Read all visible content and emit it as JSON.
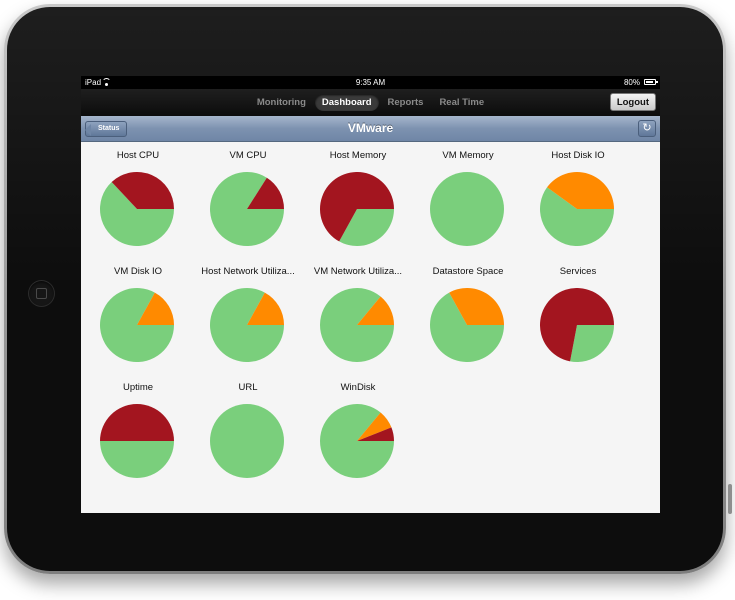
{
  "status_bar": {
    "carrier": "iPad",
    "time": "9:35 AM",
    "battery": "80%"
  },
  "nav": {
    "tabs": [
      {
        "label": "Monitoring",
        "active": false
      },
      {
        "label": "Dashboard",
        "active": true
      },
      {
        "label": "Reports",
        "active": false
      },
      {
        "label": "Real Time",
        "active": false
      }
    ],
    "logout_label": "Logout"
  },
  "title_bar": {
    "title": "VMware",
    "back_label": "Status",
    "refresh_icon": "refresh-icon"
  },
  "colors": {
    "ok": "#7acf7c",
    "critical": "#a3151f",
    "warning": "#ff8a00"
  },
  "charts": [
    {
      "label": "Host CPU",
      "slices": [
        {
          "status": "ok",
          "value": 0.63
        },
        {
          "status": "critical",
          "value": 0.37
        }
      ]
    },
    {
      "label": "VM CPU",
      "slices": [
        {
          "status": "ok",
          "value": 0.84
        },
        {
          "status": "critical",
          "value": 0.16
        }
      ]
    },
    {
      "label": "Host Memory",
      "slices": [
        {
          "status": "ok",
          "value": 0.33
        },
        {
          "status": "critical",
          "value": 0.67
        }
      ]
    },
    {
      "label": "VM Memory",
      "slices": [
        {
          "status": "ok",
          "value": 1.0
        }
      ]
    },
    {
      "label": "Host Disk IO",
      "slices": [
        {
          "status": "ok",
          "value": 0.6
        },
        {
          "status": "warning",
          "value": 0.4
        }
      ]
    },
    {
      "label": "VM Disk IO",
      "slices": [
        {
          "status": "ok",
          "value": 0.83
        },
        {
          "status": "warning",
          "value": 0.17
        }
      ]
    },
    {
      "label": "Host Network Utiliza...",
      "slices": [
        {
          "status": "ok",
          "value": 0.83
        },
        {
          "status": "warning",
          "value": 0.17
        }
      ]
    },
    {
      "label": "VM Network Utiliza...",
      "slices": [
        {
          "status": "ok",
          "value": 0.86
        },
        {
          "status": "warning",
          "value": 0.14
        }
      ]
    },
    {
      "label": "Datastore Space",
      "slices": [
        {
          "status": "ok",
          "value": 0.67
        },
        {
          "status": "warning",
          "value": 0.33
        }
      ]
    },
    {
      "label": "Services",
      "slices": [
        {
          "status": "ok",
          "value": 0.28
        },
        {
          "status": "critical",
          "value": 0.72
        }
      ]
    },
    {
      "label": "Uptime",
      "slices": [
        {
          "status": "ok",
          "value": 0.5
        },
        {
          "status": "critical",
          "value": 0.5
        }
      ]
    },
    {
      "label": "URL",
      "slices": [
        {
          "status": "ok",
          "value": 1.0
        }
      ]
    },
    {
      "label": "WinDisk",
      "slices": [
        {
          "status": "ok",
          "value": 0.86
        },
        {
          "status": "warning",
          "value": 0.08
        },
        {
          "status": "critical",
          "value": 0.06
        }
      ]
    }
  ]
}
